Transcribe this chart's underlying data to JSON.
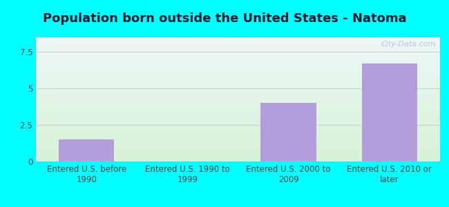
{
  "title": "Population born outside the United States - Natoma",
  "categories": [
    "Entered U.S. before\n1990",
    "Entered U.S. 1990 to\n1999",
    "Entered U.S. 2000 to\n2009",
    "Entered U.S. 2010 or\nlater"
  ],
  "values": [
    1.5,
    0,
    4.0,
    6.7
  ],
  "bar_color": "#b39ddb",
  "ylim": [
    0,
    8.5
  ],
  "yticks": [
    0,
    2.5,
    5,
    7.5
  ],
  "background_outer": "#00ffff",
  "grid_color": "#cccccc",
  "title_fontsize": 13,
  "tick_fontsize": 8.5,
  "watermark": "City-Data.com"
}
